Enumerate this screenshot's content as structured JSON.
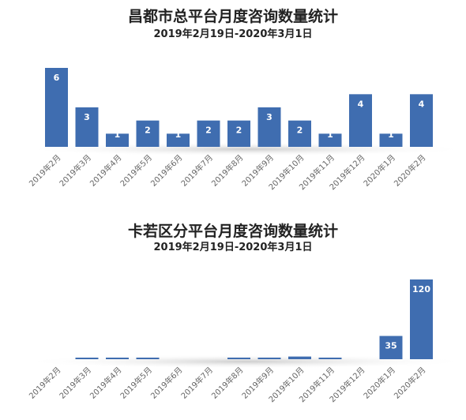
{
  "charts": [
    {
      "title": "昌都市总平台月度咨询数量统计",
      "subtitle": "2019年2月19日-2020年3月1日"
    },
    {
      "title": "卡若区分平台月度咨询数量统计",
      "subtitle": "2019年2月19日-2020年3月1日"
    }
  ],
  "chart_data": [
    {
      "type": "bar",
      "title": "昌都市总平台月度咨询数量统计",
      "subtitle": "2019年2月19日-2020年3月1日",
      "categories": [
        "2019年2月",
        "2019年3月",
        "2019年4月",
        "2019年5月",
        "2019年6月",
        "2019年7月",
        "2019年8月",
        "2019年9月",
        "2019年10月",
        "2019年11月",
        "2019年12月",
        "2020年1月",
        "2020年2月"
      ],
      "values": [
        6,
        3,
        1,
        2,
        1,
        2,
        2,
        3,
        2,
        1,
        4,
        1,
        4
      ],
      "ylim": [
        0,
        6
      ],
      "grid": false,
      "legend": "none",
      "bar_color": "#3f6db0",
      "label_color": "#ffffff"
    },
    {
      "type": "bar",
      "title": "卡若区分平台月度咨询数量统计",
      "subtitle": "2019年2月19日-2020年3月1日",
      "categories": [
        "2019年2月",
        "2019年3月",
        "2019年4月",
        "2019年5月",
        "2019年6月",
        "2019年7月",
        "2019年8月",
        "2019年9月",
        "2019年10月",
        "2019年11月",
        "2019年12月",
        "2020年1月",
        "2020年2月"
      ],
      "values": [
        0,
        2,
        2,
        1,
        0,
        0,
        2,
        1,
        4,
        2,
        0,
        35,
        120
      ],
      "ylim": [
        0,
        120
      ],
      "grid": false,
      "legend": "none",
      "bar_color": "#3f6db0",
      "label_color": "#ffffff"
    }
  ]
}
